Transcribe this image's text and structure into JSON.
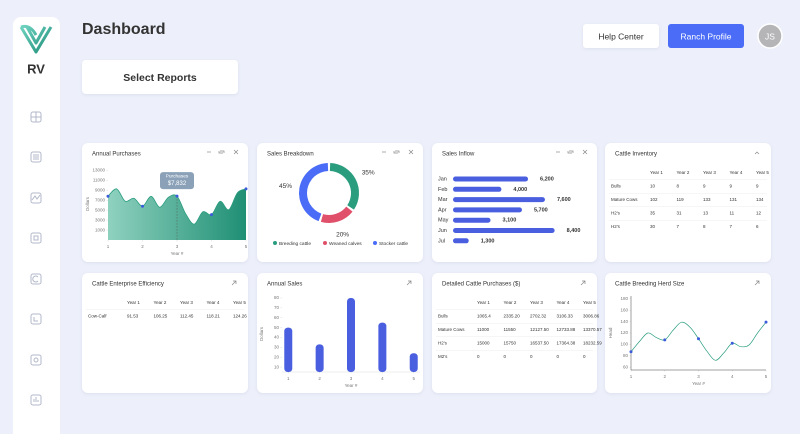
{
  "sidebar": {
    "logo": "RV"
  },
  "header": {
    "title": "Dashboard",
    "select_reports": "Select Reports",
    "help_center": "Help Center",
    "ranch_profile": "Ranch Profile",
    "avatar": "JS"
  },
  "widgets": [
    {
      "title": "Annual Purchases",
      "type": "area",
      "color": "#2a9d7f",
      "marker_color": "#3b5bdb",
      "y_label": "Dollars",
      "x_label": "Year #",
      "x": [
        1,
        1.25,
        1.5,
        1.75,
        2,
        2.25,
        2.5,
        2.75,
        3,
        3.25,
        3.5,
        3.75,
        4,
        4.25,
        4.5,
        4.75,
        5
      ],
      "values": [
        7800,
        9300,
        6800,
        7400,
        5800,
        7800,
        5600,
        7600,
        7832,
        4300,
        2200,
        4700,
        4100,
        6800,
        5100,
        8500,
        9300
      ],
      "xlim": [
        1,
        5
      ],
      "xticks": [
        1,
        2,
        3,
        4,
        5
      ],
      "ylim": [
        -1000,
        13500
      ],
      "yticks": [
        1000,
        3000,
        5000,
        7000,
        9000,
        11000,
        13000
      ],
      "tooltip": {
        "label": "Purchases",
        "x": 3,
        "value": 7832,
        "value_label": "$7,832"
      }
    },
    {
      "title": "Sales Breakdown",
      "type": "donut",
      "categories": [
        "Breeding cattle",
        "Weaned calves",
        "Stocker cattle"
      ],
      "values": [
        35,
        20,
        45
      ],
      "value_labels": [
        "35%",
        "20%",
        "45%"
      ],
      "colors": [
        "#2a9d7f",
        "#e0506a",
        "#4a6cf7"
      ]
    },
    {
      "title": "Sales Inflow",
      "type": "hbar",
      "color": "#4a5fe0",
      "categories": [
        "Jan",
        "Feb",
        "Mar",
        "Apr",
        "May",
        "Jun",
        "Jul"
      ],
      "values": [
        6200,
        4000,
        7600,
        5700,
        3100,
        8400,
        1300
      ],
      "value_labels": [
        "6,200",
        "4,000",
        "7,600",
        "5,700",
        "3,100",
        "8,400",
        "1,300"
      ]
    },
    {
      "title": "Cattle Inventory",
      "type": "table",
      "columns": [
        "Year 1",
        "Year 2",
        "Year 3",
        "Year 4",
        "Year 5"
      ],
      "rows": [
        [
          "Bulls",
          "10",
          "8",
          "9",
          "9",
          "9"
        ],
        [
          "Mature Cows",
          "102",
          "119",
          "133",
          "131",
          "134"
        ],
        [
          "H2's",
          "35",
          "31",
          "13",
          "11",
          "12"
        ],
        [
          "H2's",
          "30",
          "7",
          "8",
          "7",
          "6"
        ]
      ]
    },
    {
      "title": "Cattle Enterprise Efficiency",
      "type": "table",
      "columns": [
        "Year 1",
        "Year 2",
        "Year 3",
        "Year 4",
        "Year 5"
      ],
      "rows": [
        [
          "Cow-Calf",
          "91.53",
          "106.25",
          "112.45",
          "118.21",
          "124.26"
        ]
      ]
    },
    {
      "title": "Annual Sales",
      "type": "bar",
      "color": "#4a5fe0",
      "y_label": "Dollars",
      "x_label": "Year #",
      "x": [
        1,
        2,
        3,
        4,
        5
      ],
      "values": [
        50,
        33,
        80,
        55,
        24
      ],
      "xlim": [
        0.8,
        5.2
      ],
      "xticks": [
        1,
        2,
        3,
        4,
        5
      ],
      "ylim": [
        5,
        82
      ],
      "yticks": [
        10,
        20,
        30,
        40,
        50,
        60,
        70,
        80
      ]
    },
    {
      "title": "Detailed Cattle Purchases ($)",
      "type": "table",
      "columns": [
        "Year 1",
        "Year 2",
        "Year 3",
        "Year 4",
        "Year 5"
      ],
      "rows": [
        [
          "Bulls",
          "1065.4",
          "2335.20",
          "2702.32",
          "3106.33",
          "3006.86"
        ],
        [
          "Mature Cows",
          "11000",
          "11550",
          "12127.50",
          "12733.88",
          "13370.57"
        ],
        [
          "H2's",
          "15000",
          "15750",
          "16537.50",
          "17364.38",
          "18232.59"
        ],
        [
          "M2's",
          "0",
          "0",
          "0",
          "0",
          "0"
        ]
      ]
    },
    {
      "title": "Cattle Breeding Herd Size",
      "type": "line",
      "color": "#2a9d7f",
      "marker_color": "#3b5bdb",
      "y_label": "Head",
      "x_label": "Year #",
      "x": [
        1,
        1.25,
        1.5,
        1.75,
        2,
        2.25,
        2.5,
        2.75,
        3,
        3.25,
        3.5,
        3.75,
        4,
        4.25,
        4.5,
        4.75,
        5
      ],
      "values": [
        87,
        105,
        120,
        112,
        108,
        125,
        139,
        130,
        110,
        88,
        72,
        85,
        102,
        96,
        99,
        120,
        139
      ],
      "xlim": [
        1,
        5
      ],
      "xticks": [
        1,
        2,
        3,
        4,
        5
      ],
      "ylim": [
        55,
        185
      ],
      "yticks": [
        60,
        80,
        100,
        120,
        140,
        160,
        180
      ]
    }
  ]
}
